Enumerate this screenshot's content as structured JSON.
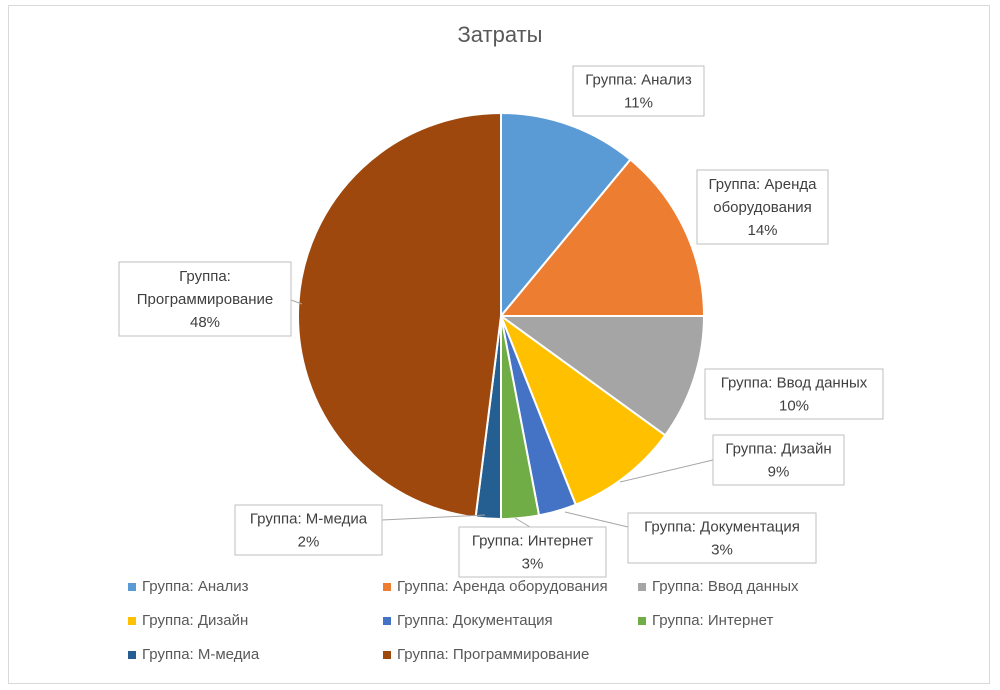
{
  "chart_data": {
    "type": "pie",
    "title": "Затраты",
    "series": [
      {
        "name": "Группа: Анализ",
        "label": "Группа: Анализ\n11%",
        "value": 11,
        "percent_label": "11%",
        "color": "#5B9BD5"
      },
      {
        "name": "Группа: Аренда оборудования",
        "label": "Группа: Аренда\nоборудования\n14%",
        "value": 14,
        "percent_label": "14%",
        "color": "#ED7D31"
      },
      {
        "name": "Группа: Ввод данных",
        "label": "Группа: Ввод данных\n10%",
        "value": 10,
        "percent_label": "10%",
        "color": "#A5A5A5"
      },
      {
        "name": "Группа: Дизайн",
        "label": "Группа: Дизайн\n9%",
        "value": 9,
        "percent_label": "9%",
        "color": "#FFC000"
      },
      {
        "name": "Группа: Документация",
        "label": "Группа: Документация\n3%",
        "value": 3,
        "percent_label": "3%",
        "color": "#4472C4"
      },
      {
        "name": "Группа: Интернет",
        "label": "Группа: Интернет\n3%",
        "value": 3,
        "percent_label": "3%",
        "color": "#70AD47"
      },
      {
        "name": "Группа: М-медиа",
        "label": "Группа: М-медиа\n2%",
        "value": 2,
        "percent_label": "2%",
        "color": "#255E91"
      },
      {
        "name": "Группа: Программирование",
        "label": "Группа:\nПрограммирование\n48%",
        "value": 48,
        "percent_label": "48%",
        "color": "#9E480E"
      }
    ],
    "legend_position": "bottom"
  }
}
